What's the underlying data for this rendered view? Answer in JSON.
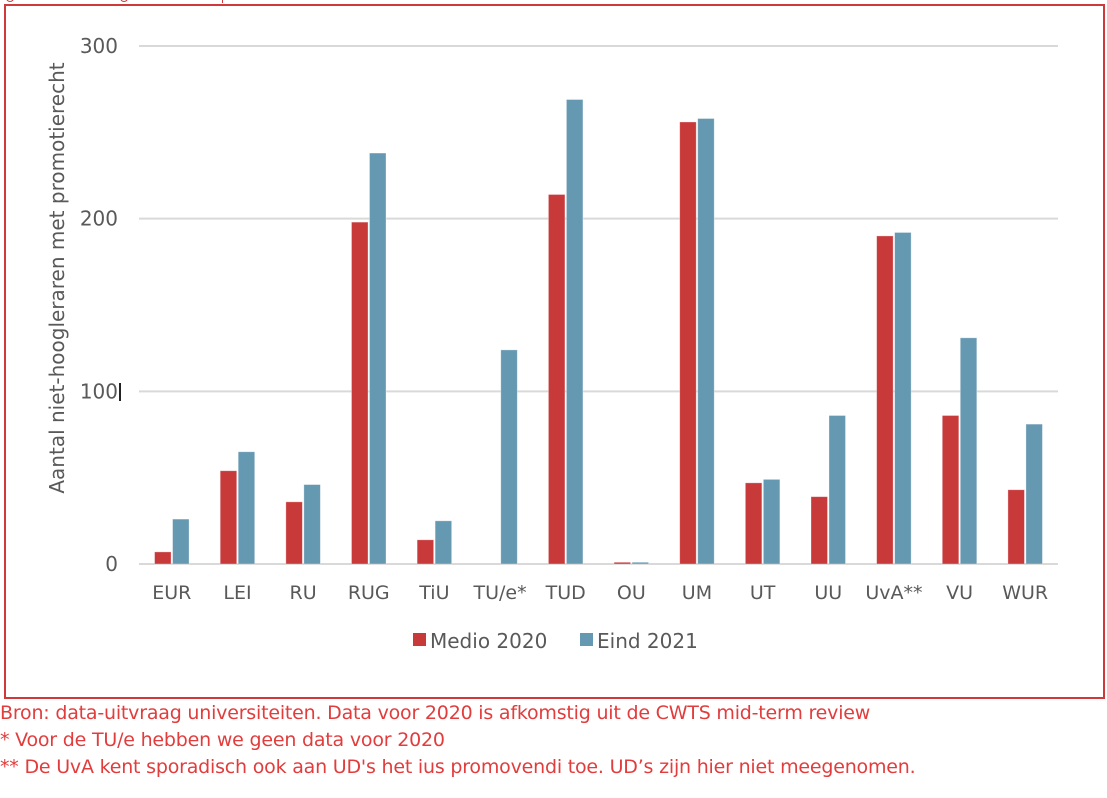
{
  "chart_data": {
    "type": "bar",
    "title": "",
    "xlabel": "",
    "ylabel": "Aantal niet-hoogleraren met promotierecht",
    "ylim": [
      0,
      300
    ],
    "yticks": [
      0,
      100,
      200,
      300
    ],
    "ytick_labels": [
      "0",
      "100",
      "200",
      "300"
    ],
    "grid": true,
    "legend_position": "bottom",
    "categories": [
      "EUR",
      "LEI",
      "RU",
      "RUG",
      "TiU",
      "TU/e*",
      "TUD",
      "OU",
      "UM",
      "UT",
      "UU",
      "UvA**",
      "VU",
      "WUR"
    ],
    "series": [
      {
        "name": "Medio 2020",
        "color": "#C8393A",
        "values": [
          7,
          54,
          36,
          198,
          14,
          0,
          214,
          1,
          256,
          47,
          39,
          190,
          86,
          43
        ]
      },
      {
        "name": "Eind 2021",
        "color": "#6598B1",
        "values": [
          26,
          65,
          46,
          238,
          25,
          124,
          269,
          1,
          258,
          49,
          86,
          192,
          131,
          81
        ]
      }
    ]
  },
  "footnotes": [
    "Bron: data-uitvraag universiteiten. Data voor 2020 is afkomstig uit de CWTS mid-term review",
    "* Voor de TU/e hebben we geen data voor 2020",
    "** De UvA kent sporadisch ook aan UD's het ius promovendi toe. UD’s zijn hier niet meegenomen."
  ],
  "colors": {
    "frame": "#D0393C",
    "footnote_text": "#E23C3C",
    "axis_text": "#595959",
    "gridline": "#D9D9D9"
  }
}
